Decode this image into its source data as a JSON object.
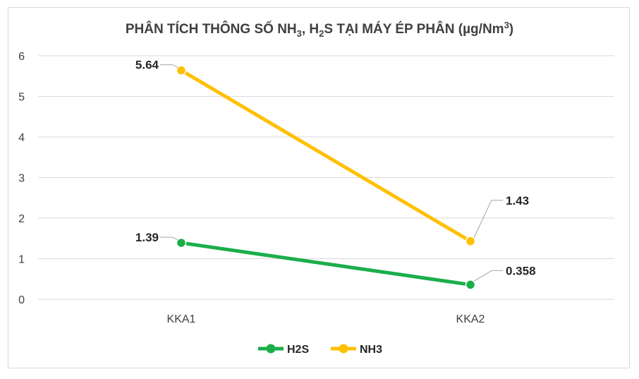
{
  "chart_data": {
    "type": "line",
    "title": {
      "part1": "PHÂN TÍCH THÔNG SỐ NH",
      "sub1": "3",
      "part2": ", H",
      "sub2": "2",
      "part3": "S TẠI MÁY ÉP PHÂN (µg/Nm",
      "sup": "3",
      "part4": ")"
    },
    "categories": [
      "KKA1",
      "KKA2"
    ],
    "ylim": [
      0,
      6
    ],
    "yticks": [
      "0",
      "1",
      "2",
      "3",
      "4",
      "5",
      "6"
    ],
    "grid": true,
    "legend_position": "bottom",
    "series": [
      {
        "name": "H2S",
        "values": [
          1.39,
          0.358
        ],
        "labels": [
          "1.39",
          "0.358"
        ],
        "color": "#1aae4a"
      },
      {
        "name": "NH3",
        "values": [
          5.64,
          1.43
        ],
        "labels": [
          "5.64",
          "1.43"
        ],
        "color": "#ffc000"
      }
    ]
  }
}
